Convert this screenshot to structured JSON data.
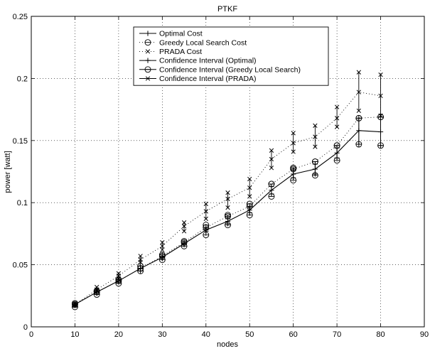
{
  "chart_data": {
    "type": "line",
    "title": "PTKF",
    "xlabel": "nodes",
    "ylabel": "power [watt]",
    "xlim": [
      0,
      90
    ],
    "ylim": [
      0,
      0.25
    ],
    "xticks": [
      "0",
      "10",
      "20",
      "30",
      "40",
      "50",
      "60",
      "70",
      "80",
      "90"
    ],
    "yticks": [
      "0",
      "0.05",
      "0.1",
      "0.15",
      "0.2",
      "0.25"
    ],
    "grid": true,
    "legend_position": "top-center",
    "x": [
      10,
      15,
      20,
      25,
      30,
      35,
      40,
      45,
      50,
      55,
      60,
      65,
      70,
      75,
      80
    ],
    "series": [
      {
        "name": "Optimal Cost",
        "style": "solid-plus",
        "values": [
          0.018,
          0.028,
          0.037,
          0.047,
          0.056,
          0.067,
          0.078,
          0.085,
          0.094,
          0.11,
          0.123,
          0.127,
          0.14,
          0.158,
          0.157
        ]
      },
      {
        "name": "Greedy Local Search Cost",
        "style": "dotted-circle",
        "values": [
          0.018,
          0.028,
          0.037,
          0.047,
          0.057,
          0.068,
          0.08,
          0.089,
          0.097,
          0.115,
          0.127,
          0.133,
          0.146,
          0.168,
          0.169
        ]
      },
      {
        "name": "PRADA Cost",
        "style": "dotted-x",
        "values": [
          0.018,
          0.03,
          0.041,
          0.054,
          0.065,
          0.081,
          0.093,
          0.103,
          0.112,
          0.135,
          0.148,
          0.153,
          0.168,
          0.189,
          0.186
        ]
      }
    ],
    "confidence_intervals": [
      {
        "name": "Confidence Interval (Optimal)",
        "marker": "plus",
        "lower": [
          0.017,
          0.027,
          0.036,
          0.045,
          0.055,
          0.066,
          0.077,
          0.083,
          0.092,
          0.107,
          0.12,
          0.123,
          0.136,
          0.147,
          0.146
        ],
        "upper": [
          0.019,
          0.029,
          0.038,
          0.049,
          0.057,
          0.068,
          0.079,
          0.087,
          0.096,
          0.113,
          0.126,
          0.131,
          0.144,
          0.168,
          0.169
        ]
      },
      {
        "name": "Confidence Interval (Greedy Local Search)",
        "marker": "circle",
        "lower": [
          0.016,
          0.026,
          0.035,
          0.045,
          0.054,
          0.065,
          0.074,
          0.082,
          0.09,
          0.105,
          0.118,
          0.122,
          0.134,
          0.147,
          0.146
        ],
        "upper": [
          0.019,
          0.029,
          0.038,
          0.049,
          0.058,
          0.069,
          0.082,
          0.09,
          0.099,
          0.115,
          0.128,
          0.133,
          0.146,
          0.168,
          0.169
        ]
      },
      {
        "name": "Confidence Interval (PRADA)",
        "marker": "x",
        "lower": [
          0.017,
          0.029,
          0.039,
          0.052,
          0.062,
          0.077,
          0.087,
          0.096,
          0.105,
          0.128,
          0.141,
          0.145,
          0.161,
          0.174,
          0.17
        ],
        "upper": [
          0.019,
          0.032,
          0.043,
          0.057,
          0.068,
          0.084,
          0.099,
          0.108,
          0.119,
          0.142,
          0.156,
          0.162,
          0.177,
          0.205,
          0.203
        ]
      }
    ]
  }
}
